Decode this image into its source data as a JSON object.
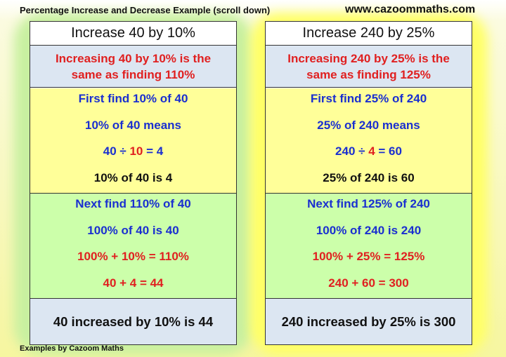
{
  "header": {
    "title": "Percentage Increase and Decrease Example (scroll down)",
    "website": "www.cazoommaths.com"
  },
  "panels": [
    {
      "title": "Increase 40 by 10%",
      "intro": "Increasing 40 by 10% is the same as finding 110%",
      "step1": [
        [
          "First find 10% of 40"
        ],
        [
          "10% of 40 means"
        ],
        [
          "40 ÷ ",
          "10",
          " = 4"
        ],
        [
          "10% of 40 is 4"
        ]
      ],
      "step2": [
        [
          "Next find 110% of 40"
        ],
        [
          "100% of 40 is 40"
        ],
        [
          "100% + 10% = 110%"
        ],
        [
          "40 + 4 = 44"
        ]
      ],
      "result": "40 increased by 10% is 44"
    },
    {
      "title": "Increase 240 by 25%",
      "intro": "Increasing 240 by 25% is the same as finding 125%",
      "step1": [
        [
          "First find 25% of 240"
        ],
        [
          "25% of 240 means"
        ],
        [
          "240 ÷ ",
          "4",
          " = 60"
        ],
        [
          "25% of 240 is 60"
        ]
      ],
      "step2": [
        [
          "Next find 125% of 240"
        ],
        [
          "100% of 240 is 240"
        ],
        [
          "100% + 25% = 125%"
        ],
        [
          "240 + 60 = 300"
        ]
      ],
      "result": "240 increased by 25% is 300"
    }
  ],
  "footer": "Examples by Cazoom Maths"
}
